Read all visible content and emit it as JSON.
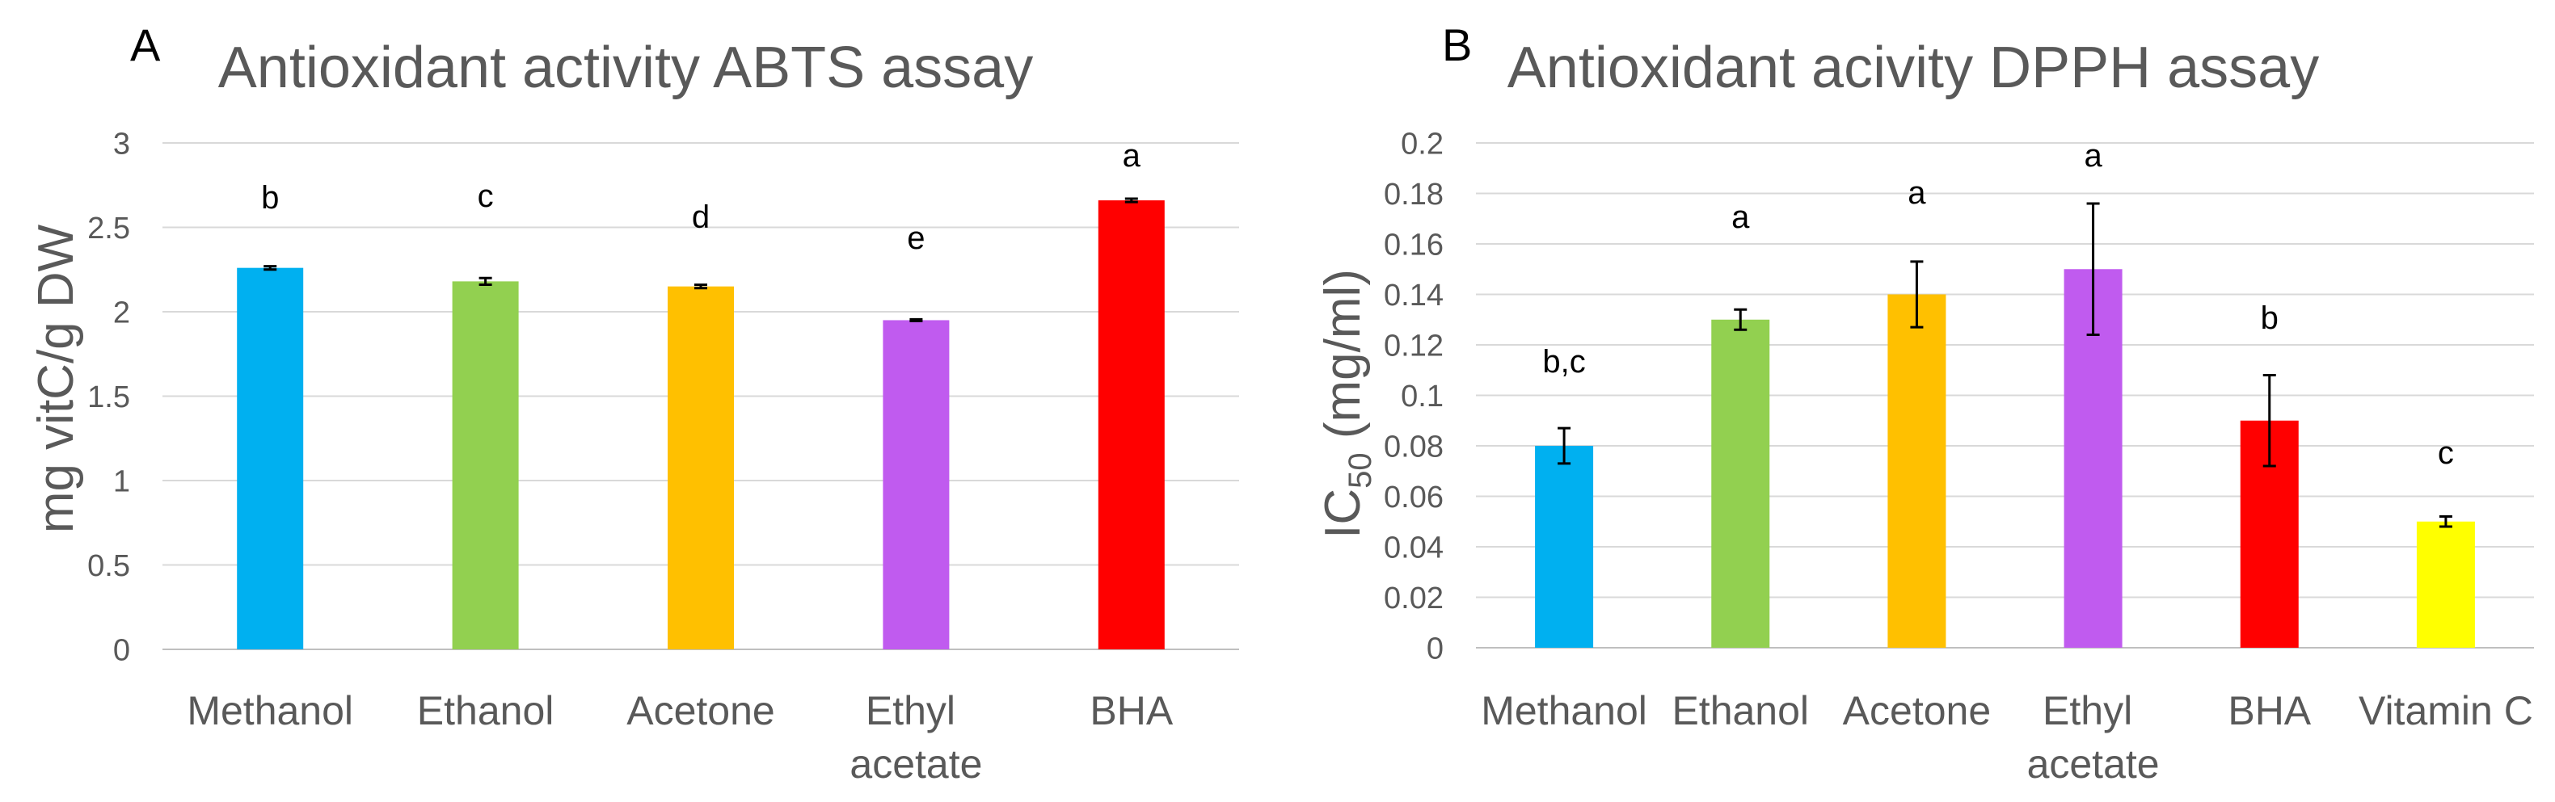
{
  "chart_data": [
    {
      "type": "bar",
      "panel_label": "A",
      "title": "Antioxidant activity ABTS assay",
      "ylabel": {
        "base": "mg vitC/g DW"
      },
      "categories": [
        "Methanol",
        "Ethanol",
        "Acetone",
        "Ethyl acetate",
        "BHA"
      ],
      "values": [
        2.26,
        2.18,
        2.15,
        1.95,
        2.66
      ],
      "errors": [
        0.01,
        0.02,
        0.01,
        0.005,
        0.01
      ],
      "significance_letters": [
        "b",
        "c",
        "d",
        "e",
        "a"
      ],
      "bar_colors": [
        "#00B0F0",
        "#92D050",
        "#FFC000",
        "#C05BEF",
        "#FF0000"
      ],
      "ylim": [
        0,
        3
      ],
      "yticks": [
        0,
        0.5,
        1,
        1.5,
        2,
        2.5,
        3
      ],
      "ytick_labels": [
        "0",
        "0.5",
        "1",
        "1.5",
        "2",
        "2.5",
        "3"
      ],
      "grid": true
    },
    {
      "type": "bar",
      "panel_label": "B",
      "title": "Antioxidant acivity DPPH assay",
      "ylabel": {
        "base": "IC",
        "subscript": "50",
        "suffix": " (mg/ml)"
      },
      "categories": [
        "Methanol",
        "Ethanol",
        "Acetone",
        "Ethyl acetate",
        "BHA",
        "Vitamin C"
      ],
      "values": [
        0.08,
        0.13,
        0.14,
        0.15,
        0.09,
        0.05
      ],
      "errors": [
        0.007,
        0.004,
        0.013,
        0.026,
        0.018,
        0.002
      ],
      "significance_letters": [
        "b,c",
        "a",
        "a",
        "a",
        "b",
        "c"
      ],
      "bar_colors": [
        "#00B0F0",
        "#92D050",
        "#FFC000",
        "#C05BEF",
        "#FF0000",
        "#FFFF00"
      ],
      "ylim": [
        0,
        0.2
      ],
      "yticks": [
        0,
        0.02,
        0.04,
        0.06,
        0.08,
        0.1,
        0.12,
        0.14,
        0.16,
        0.18,
        0.2
      ],
      "ytick_labels": [
        "0",
        "0.02",
        "0.04",
        "0.06",
        "0.08",
        "0.1",
        "0.12",
        "0.14",
        "0.16",
        "0.18",
        "0.2"
      ],
      "grid": true
    }
  ]
}
